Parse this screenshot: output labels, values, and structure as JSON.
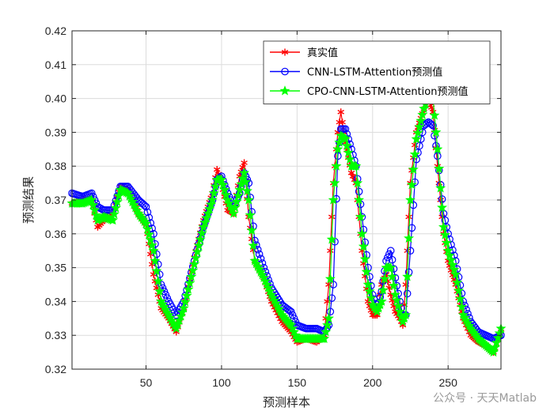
{
  "chart_data": {
    "type": "line",
    "xlabel": "预测样本",
    "ylabel": "预测结果",
    "xlim": [
      1,
      285
    ],
    "ylim": [
      0.32,
      0.42
    ],
    "xticks": [
      50,
      100,
      150,
      200,
      250
    ],
    "yticks": [
      0.32,
      0.33,
      0.34,
      0.35,
      0.36,
      0.37,
      0.38,
      0.39,
      0.4,
      0.41,
      0.42
    ],
    "grid": true,
    "legend_position": "top-right",
    "series": [
      {
        "name": "真实值",
        "color": "#ff0000",
        "marker": "asterisk",
        "keypoints": [
          [
            1,
            0.369
          ],
          [
            8,
            0.37
          ],
          [
            14,
            0.37
          ],
          [
            18,
            0.362
          ],
          [
            22,
            0.364
          ],
          [
            28,
            0.366
          ],
          [
            33,
            0.374
          ],
          [
            38,
            0.373
          ],
          [
            45,
            0.366
          ],
          [
            50,
            0.363
          ],
          [
            55,
            0.348
          ],
          [
            60,
            0.338
          ],
          [
            65,
            0.335
          ],
          [
            70,
            0.331
          ],
          [
            75,
            0.338
          ],
          [
            82,
            0.353
          ],
          [
            88,
            0.364
          ],
          [
            94,
            0.372
          ],
          [
            97,
            0.379
          ],
          [
            100,
            0.375
          ],
          [
            104,
            0.367
          ],
          [
            108,
            0.366
          ],
          [
            112,
            0.377
          ],
          [
            115,
            0.381
          ],
          [
            118,
            0.365
          ],
          [
            122,
            0.352
          ],
          [
            128,
            0.347
          ],
          [
            133,
            0.34
          ],
          [
            140,
            0.334
          ],
          [
            146,
            0.331
          ],
          [
            150,
            0.328
          ],
          [
            156,
            0.329
          ],
          [
            163,
            0.328
          ],
          [
            168,
            0.33
          ],
          [
            171,
            0.345
          ],
          [
            174,
            0.375
          ],
          [
            177,
            0.39
          ],
          [
            179,
            0.396
          ],
          [
            182,
            0.387
          ],
          [
            186,
            0.378
          ],
          [
            189,
            0.375
          ],
          [
            193,
            0.355
          ],
          [
            197,
            0.34
          ],
          [
            200,
            0.336
          ],
          [
            203,
            0.336
          ],
          [
            206,
            0.345
          ],
          [
            209,
            0.348
          ],
          [
            212,
            0.342
          ],
          [
            215,
            0.337
          ],
          [
            218,
            0.335
          ],
          [
            220,
            0.333
          ],
          [
            222,
            0.345
          ],
          [
            225,
            0.375
          ],
          [
            229,
            0.39
          ],
          [
            234,
            0.397
          ],
          [
            237,
            0.4
          ],
          [
            240,
            0.396
          ],
          [
            243,
            0.38
          ],
          [
            247,
            0.36
          ],
          [
            250,
            0.352
          ],
          [
            255,
            0.345
          ],
          [
            260,
            0.335
          ],
          [
            265,
            0.33
          ],
          [
            270,
            0.328
          ],
          [
            275,
            0.327
          ],
          [
            280,
            0.325
          ],
          [
            285,
            0.331
          ]
        ]
      },
      {
        "name": "CNN-LSTM-Attention预测值",
        "color": "#0000ff",
        "marker": "circle",
        "keypoints": [
          [
            1,
            0.372
          ],
          [
            8,
            0.371
          ],
          [
            14,
            0.372
          ],
          [
            18,
            0.368
          ],
          [
            22,
            0.367
          ],
          [
            28,
            0.367
          ],
          [
            33,
            0.374
          ],
          [
            38,
            0.374
          ],
          [
            45,
            0.37
          ],
          [
            50,
            0.368
          ],
          [
            55,
            0.36
          ],
          [
            60,
            0.345
          ],
          [
            65,
            0.34
          ],
          [
            70,
            0.336
          ],
          [
            75,
            0.34
          ],
          [
            82,
            0.352
          ],
          [
            88,
            0.362
          ],
          [
            94,
            0.37
          ],
          [
            97,
            0.376
          ],
          [
            100,
            0.377
          ],
          [
            104,
            0.372
          ],
          [
            108,
            0.368
          ],
          [
            112,
            0.372
          ],
          [
            115,
            0.378
          ],
          [
            118,
            0.375
          ],
          [
            122,
            0.358
          ],
          [
            128,
            0.35
          ],
          [
            133,
            0.344
          ],
          [
            140,
            0.339
          ],
          [
            146,
            0.337
          ],
          [
            150,
            0.333
          ],
          [
            156,
            0.332
          ],
          [
            163,
            0.332
          ],
          [
            168,
            0.331
          ],
          [
            171,
            0.333
          ],
          [
            174,
            0.345
          ],
          [
            177,
            0.383
          ],
          [
            179,
            0.391
          ],
          [
            182,
            0.391
          ],
          [
            186,
            0.385
          ],
          [
            189,
            0.38
          ],
          [
            193,
            0.365
          ],
          [
            197,
            0.35
          ],
          [
            200,
            0.342
          ],
          [
            203,
            0.338
          ],
          [
            206,
            0.343
          ],
          [
            209,
            0.352
          ],
          [
            212,
            0.355
          ],
          [
            215,
            0.347
          ],
          [
            218,
            0.34
          ],
          [
            220,
            0.336
          ],
          [
            222,
            0.336
          ],
          [
            225,
            0.355
          ],
          [
            229,
            0.382
          ],
          [
            234,
            0.392
          ],
          [
            237,
            0.393
          ],
          [
            240,
            0.392
          ],
          [
            243,
            0.383
          ],
          [
            247,
            0.366
          ],
          [
            250,
            0.36
          ],
          [
            255,
            0.352
          ],
          [
            260,
            0.34
          ],
          [
            265,
            0.334
          ],
          [
            270,
            0.331
          ],
          [
            275,
            0.33
          ],
          [
            280,
            0.329
          ],
          [
            285,
            0.33
          ]
        ]
      },
      {
        "name": "CPO-CNN-LSTM-Attention预测值",
        "color": "#00ff00",
        "marker": "star",
        "keypoints": [
          [
            1,
            0.369
          ],
          [
            8,
            0.369
          ],
          [
            14,
            0.37
          ],
          [
            18,
            0.364
          ],
          [
            22,
            0.365
          ],
          [
            28,
            0.364
          ],
          [
            33,
            0.373
          ],
          [
            38,
            0.372
          ],
          [
            45,
            0.366
          ],
          [
            50,
            0.363
          ],
          [
            55,
            0.355
          ],
          [
            60,
            0.34
          ],
          [
            65,
            0.336
          ],
          [
            70,
            0.332
          ],
          [
            75,
            0.338
          ],
          [
            82,
            0.351
          ],
          [
            88,
            0.362
          ],
          [
            94,
            0.37
          ],
          [
            97,
            0.376
          ],
          [
            100,
            0.376
          ],
          [
            104,
            0.37
          ],
          [
            108,
            0.366
          ],
          [
            112,
            0.373
          ],
          [
            115,
            0.378
          ],
          [
            118,
            0.37
          ],
          [
            122,
            0.352
          ],
          [
            128,
            0.347
          ],
          [
            133,
            0.342
          ],
          [
            140,
            0.336
          ],
          [
            146,
            0.333
          ],
          [
            150,
            0.329
          ],
          [
            156,
            0.329
          ],
          [
            163,
            0.329
          ],
          [
            168,
            0.329
          ],
          [
            171,
            0.335
          ],
          [
            174,
            0.37
          ],
          [
            177,
            0.385
          ],
          [
            179,
            0.389
          ],
          [
            182,
            0.388
          ],
          [
            186,
            0.38
          ],
          [
            189,
            0.38
          ],
          [
            193,
            0.36
          ],
          [
            197,
            0.345
          ],
          [
            200,
            0.339
          ],
          [
            203,
            0.337
          ],
          [
            206,
            0.34
          ],
          [
            209,
            0.35
          ],
          [
            212,
            0.35
          ],
          [
            215,
            0.342
          ],
          [
            218,
            0.337
          ],
          [
            220,
            0.334
          ],
          [
            222,
            0.336
          ],
          [
            225,
            0.37
          ],
          [
            229,
            0.388
          ],
          [
            234,
            0.397
          ],
          [
            237,
            0.401
          ],
          [
            240,
            0.4
          ],
          [
            243,
            0.385
          ],
          [
            247,
            0.362
          ],
          [
            250,
            0.355
          ],
          [
            255,
            0.348
          ],
          [
            260,
            0.336
          ],
          [
            265,
            0.332
          ],
          [
            270,
            0.329
          ],
          [
            275,
            0.327
          ],
          [
            280,
            0.325
          ],
          [
            285,
            0.332
          ]
        ]
      }
    ]
  },
  "watermark": {
    "text": "公众号 · 天天Matlab"
  }
}
